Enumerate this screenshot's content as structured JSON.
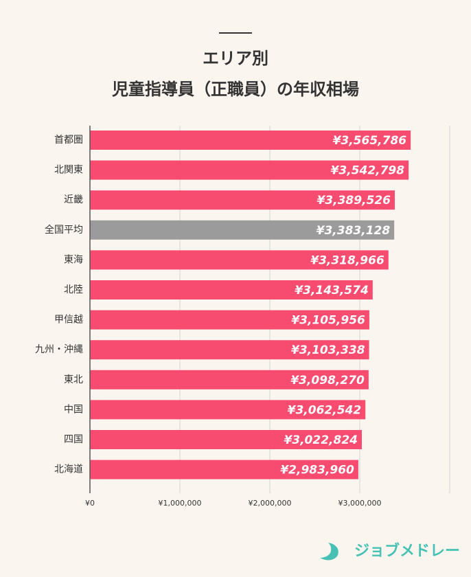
{
  "chart_data": {
    "type": "bar",
    "orientation": "horizontal",
    "title": [
      "エリア別",
      "児童指導員（正職員）の年収相場"
    ],
    "categories": [
      "首都圏",
      "北関東",
      "近畿",
      "全国平均",
      "東海",
      "北陸",
      "甲信越",
      "九州・沖縄",
      "東北",
      "中国",
      "四国",
      "北海道"
    ],
    "values": [
      3565786,
      3542798,
      3389526,
      3383128,
      3318966,
      3143574,
      3105956,
      3103338,
      3098270,
      3062542,
      3022824,
      2983960
    ],
    "value_labels": [
      "¥3,565,786",
      "¥3,542,798",
      "¥3,389,526",
      "¥3,383,128",
      "¥3,318,966",
      "¥3,143,574",
      "¥3,105,956",
      "¥3,103,338",
      "¥3,098,270",
      "¥3,062,542",
      "¥3,022,824",
      "¥2,983,960"
    ],
    "colors": [
      "#f84b70",
      "#f84b70",
      "#f84b70",
      "#9b9b9b",
      "#f84b70",
      "#f84b70",
      "#f84b70",
      "#f84b70",
      "#f84b70",
      "#f84b70",
      "#f84b70",
      "#f84b70"
    ],
    "xlim": [
      0,
      4000000
    ],
    "xticks": [
      {
        "value": 0,
        "label": "¥0"
      },
      {
        "value": 1000000,
        "label": "¥1,000,000"
      },
      {
        "value": 2000000,
        "label": "¥2,000,000"
      },
      {
        "value": 3000000,
        "label": "¥3,000,000"
      }
    ],
    "grid": true
  },
  "brand": "ジョブメドレー"
}
